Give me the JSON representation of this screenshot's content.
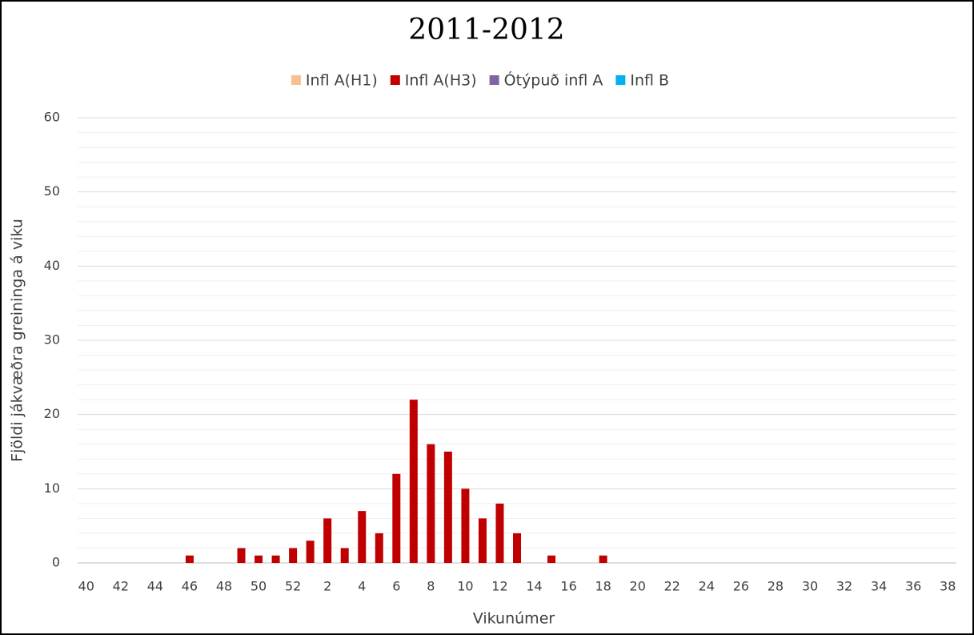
{
  "chart_data": {
    "type": "bar",
    "stacked": true,
    "title": "2011-2012",
    "x_label": "Vikunúmer",
    "y_label": "Fjöldi jákvæðra greininga á viku",
    "categories": [
      "40",
      null,
      "42",
      null,
      "44",
      null,
      "46",
      null,
      "48",
      null,
      "50",
      null,
      "52",
      null,
      "2",
      null,
      "4",
      null,
      "6",
      null,
      "8",
      null,
      "10",
      null,
      "12",
      null,
      "14",
      null,
      "16",
      null,
      "18",
      null,
      "20",
      null,
      "22",
      null,
      "24",
      null,
      "26",
      null,
      "28",
      null,
      "30",
      null,
      "32",
      null,
      "34",
      null,
      "36",
      null,
      "38"
    ],
    "series": [
      {
        "name": "Infl A(H1)",
        "color": "#f8c08f",
        "values": [
          0,
          0,
          0,
          0,
          0,
          0,
          0,
          0,
          0,
          0,
          0,
          0,
          0,
          0,
          0,
          0,
          0,
          0,
          0,
          0,
          0,
          0,
          0,
          0,
          0,
          0,
          0,
          0,
          0,
          0,
          0,
          0,
          0,
          0,
          0,
          0,
          0,
          0,
          0,
          0,
          0,
          0,
          0,
          0,
          0,
          0,
          0,
          0,
          0,
          0,
          0
        ]
      },
      {
        "name": "Infl A(H3)",
        "color": "#c00000",
        "values": [
          0,
          0,
          0,
          0,
          0,
          0,
          1,
          0,
          0,
          2,
          1,
          1,
          2,
          3,
          6,
          2,
          7,
          4,
          12,
          22,
          16,
          15,
          10,
          6,
          8,
          4,
          0,
          1,
          0,
          0,
          1,
          0,
          0,
          0,
          0,
          0,
          0,
          0,
          0,
          0,
          0,
          0,
          0,
          0,
          0,
          0,
          0,
          0,
          0,
          0,
          0
        ]
      },
      {
        "name": "Ótýpuð infl A",
        "color": "#8064a2",
        "values": [
          0,
          0,
          0,
          0,
          0,
          0,
          0,
          0,
          0,
          0,
          0,
          0,
          0,
          0,
          0,
          0,
          0,
          0,
          0,
          0,
          0,
          0,
          0,
          0,
          0,
          0,
          0,
          0,
          0,
          0,
          0,
          0,
          0,
          0,
          0,
          0,
          0,
          0,
          0,
          0,
          0,
          0,
          0,
          0,
          0,
          0,
          0,
          0,
          0,
          0,
          0
        ]
      },
      {
        "name": "Infl B",
        "color": "#00b0f0",
        "values": [
          0,
          0,
          0,
          0,
          0,
          0,
          0,
          0,
          0,
          0,
          0,
          0,
          0,
          0,
          0,
          0,
          0,
          0,
          0,
          0,
          0,
          0,
          0,
          0,
          0,
          0,
          0,
          0,
          0,
          0,
          0,
          0,
          0,
          0,
          0,
          0,
          0,
          0,
          0,
          0,
          0,
          0,
          0,
          0,
          0,
          0,
          0,
          0,
          0,
          0,
          0
        ]
      }
    ],
    "ylim": [
      0,
      60
    ],
    "yticks": [
      0,
      10,
      20,
      30,
      40,
      50,
      60
    ],
    "minor_yticks": [
      2,
      4,
      6,
      8,
      12,
      14,
      16,
      18,
      22,
      24,
      26,
      28,
      32,
      34,
      36,
      38,
      42,
      44,
      46,
      48,
      52,
      54,
      56,
      58
    ],
    "grid": true,
    "legend": "top"
  }
}
